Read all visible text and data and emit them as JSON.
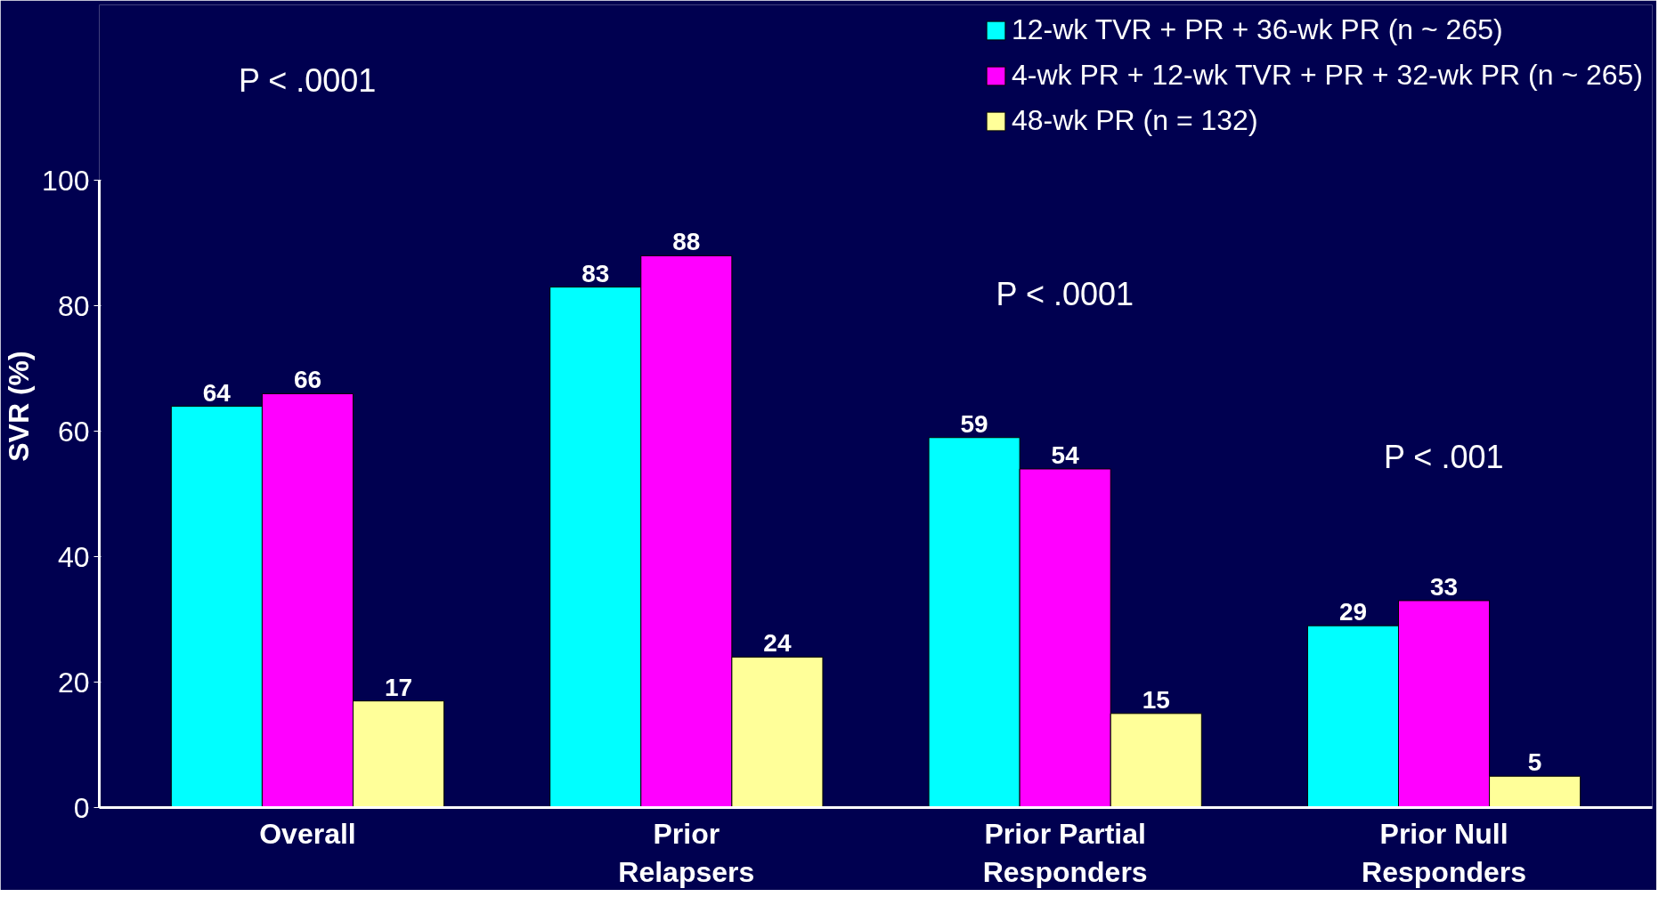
{
  "chart_data": {
    "type": "bar",
    "ylabel": "SVR (%)",
    "categories": [
      "Overall",
      "Prior\nRelapsers",
      "Prior Partial\nResponders",
      "Prior Null\nResponders"
    ],
    "series": [
      {
        "name": "12-wk TVR + PR + 36-wk PR (n ~ 265)",
        "color": "#00ffff",
        "values": [
          64,
          83,
          59,
          29
        ]
      },
      {
        "name": "4-wk PR + 12-wk TVR + PR + 32-wk PR (n ~ 265)",
        "color": "#ff00ff",
        "values": [
          66,
          88,
          54,
          33
        ]
      },
      {
        "name": "48-wk PR (n = 132)",
        "color": "#ffff99",
        "values": [
          17,
          24,
          15,
          5
        ]
      }
    ],
    "ylim": [
      0,
      128
    ],
    "yticks": [
      0,
      20,
      40,
      60,
      80,
      100
    ],
    "data_labels": true,
    "grid": false,
    "legend": "top right",
    "annotations": [
      "P < .0001",
      "P < .0001",
      "P < .001"
    ]
  }
}
